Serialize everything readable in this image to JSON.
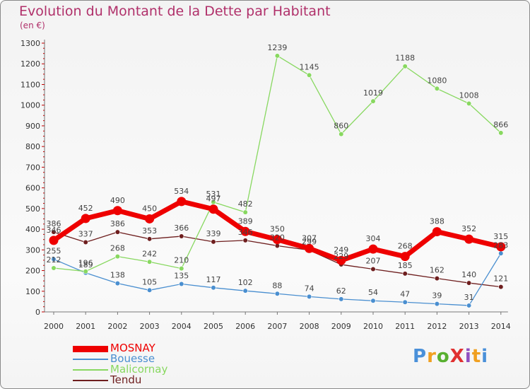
{
  "title": "Evolution du Montant de la Dette par Habitant",
  "subtitle": "(en €)",
  "brand": "ProXiti",
  "chart_data": {
    "type": "line",
    "title": "Evolution du Montant de la Dette par Habitant",
    "ylabel": "(en €)",
    "xlabel": "",
    "categories": [
      "2000",
      "2001",
      "2002",
      "2003",
      "2004",
      "2005",
      "2006",
      "2007",
      "2008",
      "2009",
      "2010",
      "2011",
      "2012",
      "2013",
      "2014"
    ],
    "yticks": [
      "0",
      "100",
      "200",
      "300",
      "400",
      "500",
      "600",
      "700",
      "800",
      "900",
      "1000",
      "1100",
      "1200",
      "1300"
    ],
    "ylim": [
      0,
      1300
    ],
    "grid": false,
    "legend_position": "bottom-left",
    "series": [
      {
        "name": "Tendu",
        "color": "#6e1e1e",
        "values": [
          386,
          337,
          386,
          353,
          366,
          339,
          346,
          320,
          299,
          229,
          207,
          185,
          162,
          140,
          121
        ]
      },
      {
        "name": "Bouesse",
        "color": "#4a8fd0",
        "values": [
          255,
          189,
          138,
          105,
          135,
          117,
          102,
          88,
          74,
          62,
          54,
          47,
          39,
          31,
          283
        ]
      },
      {
        "name": "Malicornay",
        "color": "#88d860",
        "values": [
          212,
          196,
          268,
          242,
          210,
          531,
          482,
          1239,
          1145,
          860,
          1019,
          1188,
          1080,
          1008,
          866
        ]
      },
      {
        "name": "MOSNAY",
        "color": "#ee0000",
        "values": [
          346,
          452,
          490,
          450,
          534,
          497,
          389,
          350,
          307,
          249,
          304,
          268,
          388,
          352,
          315
        ]
      }
    ],
    "legend": [
      {
        "name": "MOSNAY",
        "color": "#ee0000"
      },
      {
        "name": "Bouesse",
        "color": "#4a8fd0"
      },
      {
        "name": "Malicornay",
        "color": "#88d860"
      },
      {
        "name": "Tendu",
        "color": "#6e1e1e"
      }
    ]
  }
}
